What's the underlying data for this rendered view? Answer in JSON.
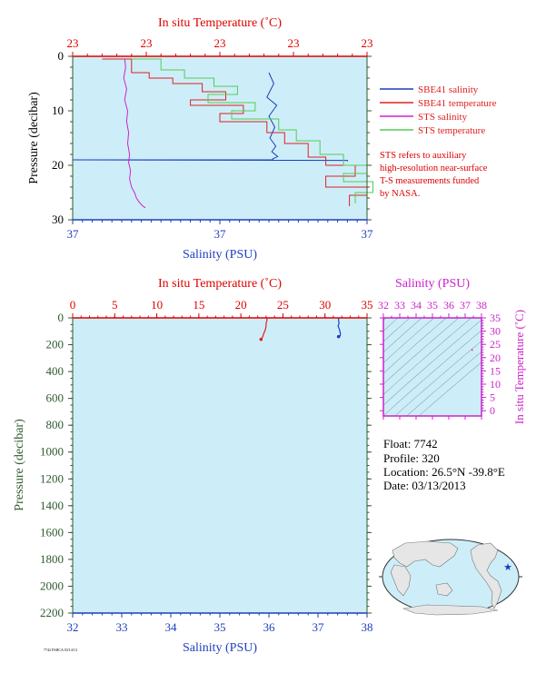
{
  "colors": {
    "plot_bg": "#cdeef8",
    "temp_axis": "#e00000",
    "sal_axis": "#1e3fbf",
    "pressure_axis": "#2e5a2e",
    "ts_axis": "#cc22cc",
    "sbe_salinity": "#1a3cc0",
    "sbe_temperature": "#e02020",
    "sts_salinity": "#d020d0",
    "sts_temperature": "#55cc55"
  },
  "legend": {
    "items": [
      {
        "label": "SBE41 salinity",
        "color": "#1a3cc0"
      },
      {
        "label": "SBE41 temperature",
        "color": "#e02020"
      },
      {
        "label": "STS salinity",
        "color": "#d020d0"
      },
      {
        "label": "STS temperature",
        "color": "#55cc55"
      }
    ],
    "note_lines": [
      "STS refers to auxiliary",
      "high-resolution near-surface",
      "T-S measurements funded",
      "by NASA."
    ]
  },
  "info": {
    "float": "Float:  7742",
    "profile": "Profile:  320",
    "location": "Location:  26.5°N  -39.8°E",
    "date": "Date:  03/13/2013"
  },
  "footer_code": "7742 FSHCA 03/14/13",
  "chart_data": [
    {
      "type": "line",
      "name": "near-surface profile",
      "xlabel_top": "In situ Temperature (˚C)",
      "xlabel_bottom": "Salinity (PSU)",
      "ylabel": "Pressure (decibar)",
      "top_ticks": [
        "23",
        "23",
        "23",
        "23",
        "23"
      ],
      "bottom_ticks": [
        "37",
        "37",
        "37"
      ],
      "y_ticks": [
        "0",
        "10",
        "20",
        "30"
      ],
      "ylim": [
        30,
        0
      ],
      "temp_range": [
        22.8,
        23.3
      ],
      "sal_range": [
        37.22,
        37.52
      ],
      "series": [
        {
          "name": "SBE41 salinity",
          "color": "#1a3cc0",
          "x": [
            37.42,
            37.425,
            37.418,
            37.428,
            37.42,
            37.426,
            37.421,
            37.427,
            37.423,
            37.429,
            37.424,
            37.424,
            37.22,
            37.5,
            37.5
          ],
          "y": [
            3.0,
            5.0,
            7.5,
            9.0,
            11.0,
            13.0,
            15.0,
            16.5,
            17.5,
            18.4,
            18.8,
            19.0,
            19.0,
            19.1,
            19.3
          ]
        },
        {
          "name": "SBE41 temperature",
          "color": "#e02020",
          "x": [
            22.85,
            22.9,
            22.93,
            22.97,
            23.02,
            23.06,
            23.0,
            23.09,
            23.05,
            23.13,
            23.16,
            23.2,
            23.23,
            23.28,
            23.23,
            23.3,
            23.27
          ],
          "y": [
            0.5,
            3.0,
            4.0,
            5.0,
            6.5,
            8.0,
            9.0,
            10.5,
            12.0,
            14.0,
            16.0,
            18.5,
            20.0,
            22.0,
            24.0,
            25.5,
            27.5
          ]
        },
        {
          "name": "STS salinity",
          "color": "#d020d0",
          "x": [
            37.273,
            37.274,
            37.272,
            37.275,
            37.273,
            37.276,
            37.275,
            37.277,
            37.276,
            37.278,
            37.277,
            37.279,
            37.278,
            37.28,
            37.283,
            37.285,
            37.288,
            37.291,
            37.294
          ],
          "y": [
            0.5,
            2.0,
            4.0,
            6.0,
            8.0,
            10.0,
            12.0,
            14.0,
            16.0,
            18.0,
            19.5,
            21.0,
            22.5,
            24.0,
            25.0,
            26.0,
            26.8,
            27.4,
            27.8
          ]
        },
        {
          "name": "STS temperature",
          "color": "#55cc55",
          "x": [
            22.9,
            22.95,
            22.99,
            23.04,
            23.08,
            23.03,
            23.11,
            23.07,
            23.15,
            23.18,
            23.22,
            23.26,
            23.3,
            23.26,
            23.31,
            23.28
          ],
          "y": [
            0.5,
            2.5,
            4.0,
            5.5,
            7.0,
            8.5,
            10.0,
            11.5,
            13.5,
            15.5,
            18.0,
            20.0,
            21.5,
            23.0,
            25.0,
            27.0
          ]
        }
      ]
    },
    {
      "type": "line",
      "name": "full profile",
      "xlabel_top": "In situ Temperature (˚C)",
      "xlabel_bottom": "Salinity (PSU)",
      "ylabel": "Pressure (decibar)",
      "top_ticks": [
        0,
        5,
        10,
        15,
        20,
        25,
        30,
        35
      ],
      "bottom_ticks": [
        32,
        33,
        34,
        35,
        36,
        37,
        38
      ],
      "y_ticks": [
        0,
        200,
        400,
        600,
        800,
        1000,
        1200,
        1400,
        1600,
        1800,
        2000,
        2200
      ],
      "temp_range": [
        0,
        35
      ],
      "sal_range": [
        32,
        38
      ],
      "ylim": [
        2200,
        0
      ],
      "series": [
        {
          "name": "SBE41 salinity",
          "color": "#1a3cc0",
          "x": [
            37.42,
            37.42,
            37.43,
            37.41,
            37.44,
            37.46,
            37.45,
            37.42
          ],
          "y": [
            0,
            20,
            40,
            60,
            90,
            120,
            135,
            140
          ]
        },
        {
          "name": "SBE41 temperature",
          "color": "#e02020",
          "x": [
            23.1,
            23.1,
            23.0,
            23.0,
            22.9,
            22.7,
            22.6,
            22.4
          ],
          "y": [
            0,
            20,
            40,
            60,
            90,
            120,
            140,
            160
          ]
        }
      ]
    },
    {
      "type": "line",
      "name": "T-S diagram",
      "xlabel_top": "Salinity (PSU)",
      "ylabel_right": "In situ Temperature (˚C)",
      "x_ticks": [
        32,
        33,
        34,
        35,
        36,
        37,
        38
      ],
      "y_ticks": [
        0,
        5,
        10,
        15,
        20,
        25,
        30,
        35
      ],
      "xlim": [
        32,
        38
      ],
      "ylim": [
        -2,
        35
      ],
      "series": [
        {
          "name": "T-S",
          "color": "#e02020",
          "x": [
            37.4,
            37.42,
            37.45
          ],
          "y": [
            23.2,
            23.0,
            22.6
          ]
        }
      ]
    }
  ]
}
